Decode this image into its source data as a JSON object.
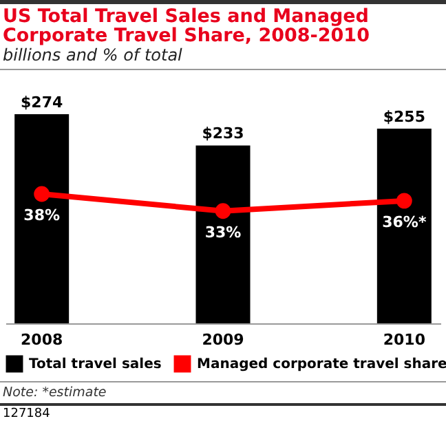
{
  "chart_data": {
    "type": "bar",
    "title": "US Total Travel Sales and Managed Corporate Travel Share, 2008-2010",
    "subtitle": "billions and % of total",
    "categories": [
      "2008",
      "2009",
      "2010"
    ],
    "series": [
      {
        "name": "Total travel sales",
        "color": "#000000",
        "values": [
          274,
          233,
          255
        ],
        "value_labels": [
          "$274",
          "$233",
          "$255"
        ]
      },
      {
        "name": "Managed corporate travel share",
        "type": "line",
        "axis": "y2",
        "color": "#ff0000",
        "values": [
          38,
          33,
          36
        ],
        "value_labels": [
          "38%",
          "33%",
          "36%*"
        ]
      }
    ],
    "grid": false,
    "legend": "bottom",
    "marker": "circle",
    "annotations": [
      "Note: *estimate",
      "127184"
    ]
  }
}
